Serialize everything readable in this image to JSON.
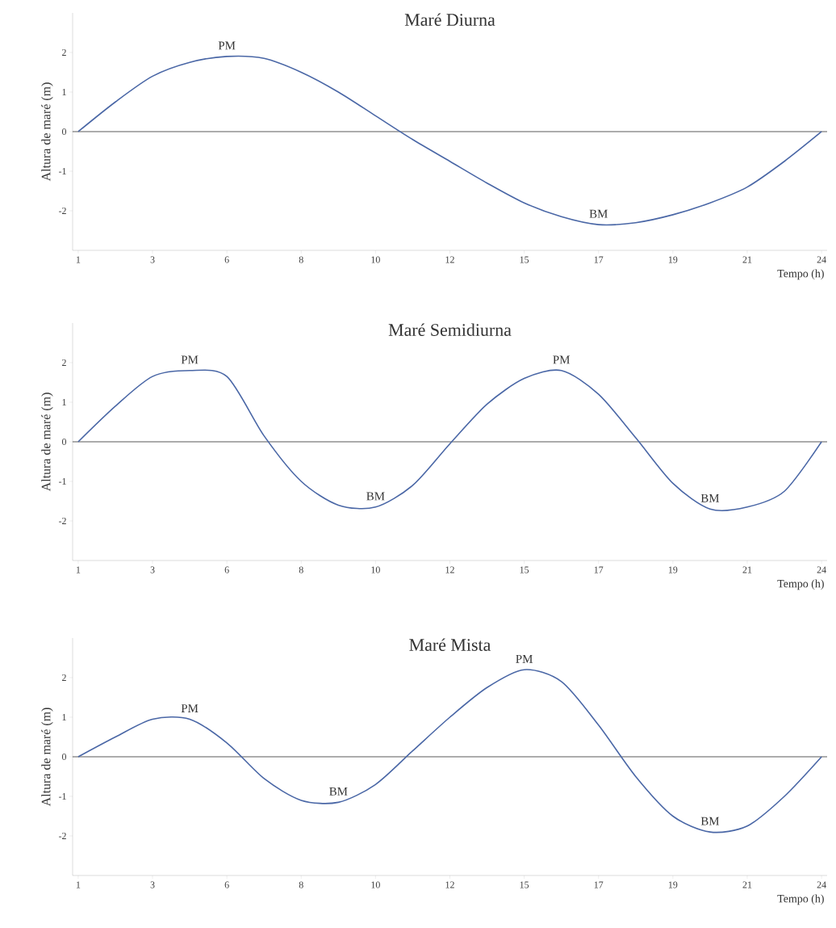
{
  "chart_data": [
    {
      "type": "line",
      "title": "Maré Diurna",
      "xlabel": "Tempo (h)",
      "ylabel": "Altura de maré (m)",
      "categories": [
        "1",
        null,
        "3",
        null,
        "6",
        null,
        "8",
        null,
        "10",
        null,
        "12",
        null,
        "15",
        null,
        "17",
        null,
        "19",
        null,
        "21",
        null,
        "24"
      ],
      "series": [
        {
          "color": "#4a67a6",
          "values": [
            0,
            0.75,
            1.4,
            1.75,
            1.9,
            1.85,
            1.5,
            1.0,
            0.4,
            -0.2,
            -0.75,
            -1.3,
            -1.8,
            -2.15,
            -2.35,
            -2.3,
            -2.1,
            -1.8,
            -1.4,
            -0.75,
            0
          ]
        }
      ],
      "ylim": [
        -3,
        3
      ],
      "yticks": [
        -2,
        -1,
        0,
        1,
        2
      ],
      "ref_lines": [
        {
          "axis": "y",
          "value": 0,
          "color": "#595959"
        }
      ],
      "annotations": [
        "PM",
        "BM"
      ]
    },
    {
      "type": "line",
      "title": "Maré Semidiurna",
      "xlabel": "Tempo (h)",
      "ylabel": "Altura de maré (m)",
      "categories": [
        "1",
        null,
        "3",
        null,
        "6",
        null,
        "8",
        null,
        "10",
        null,
        "12",
        null,
        "15",
        null,
        "17",
        null,
        "19",
        null,
        "21",
        null,
        "24"
      ],
      "series": [
        {
          "color": "#4a67a6",
          "values": [
            0,
            0.9,
            1.65,
            1.8,
            1.65,
            0.15,
            -1.0,
            -1.6,
            -1.65,
            -1.1,
            -0.05,
            0.95,
            1.6,
            1.8,
            1.2,
            0.1,
            -1.05,
            -1.7,
            -1.65,
            -1.25,
            0
          ]
        }
      ],
      "ylim": [
        -3,
        3
      ],
      "yticks": [
        -2,
        -1,
        0,
        1,
        2
      ],
      "ref_lines": [
        {
          "axis": "y",
          "value": 0,
          "color": "#595959"
        }
      ],
      "annotations": [
        "PM",
        "BM",
        "PM",
        "BM"
      ]
    },
    {
      "type": "line",
      "title": "Maré Mista",
      "xlabel": "Tempo (h)",
      "ylabel": "Altura de maré (m)",
      "categories": [
        "1",
        null,
        "3",
        null,
        "6",
        null,
        "8",
        null,
        "10",
        null,
        "12",
        null,
        "15",
        null,
        "17",
        null,
        "19",
        null,
        "21",
        null,
        "24"
      ],
      "series": [
        {
          "color": "#4a67a6",
          "values": [
            0,
            0.5,
            0.95,
            0.95,
            0.35,
            -0.55,
            -1.1,
            -1.15,
            -0.7,
            0.15,
            1.0,
            1.75,
            2.2,
            1.9,
            0.8,
            -0.5,
            -1.5,
            -1.9,
            -1.75,
            -1.0,
            0
          ]
        }
      ],
      "ylim": [
        -3,
        3
      ],
      "yticks": [
        -2,
        -1,
        0,
        1,
        2
      ],
      "ref_lines": [
        {
          "axis": "y",
          "value": 0,
          "color": "#595959"
        }
      ],
      "annotations": [
        "PM",
        "BM",
        "PM",
        "BM"
      ]
    }
  ]
}
